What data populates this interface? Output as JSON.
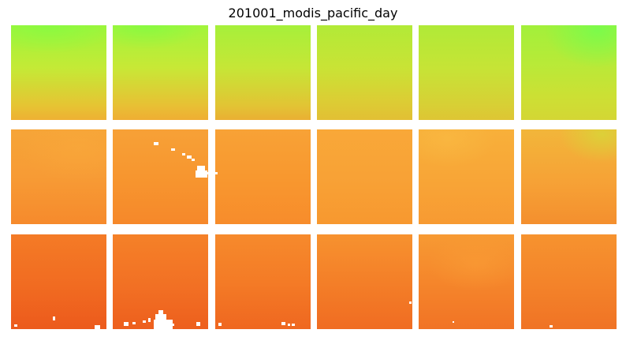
{
  "title": "201001_modis_pacific_day",
  "grid": {
    "rows": 3,
    "columns": 6,
    "tiles": [
      {
        "id": "r0c0",
        "palette": [
          "#9ef53a",
          "#eeb033"
        ]
      },
      {
        "id": "r0c1",
        "palette": [
          "#a2f53b",
          "#efae33"
        ]
      },
      {
        "id": "r0c2",
        "palette": [
          "#a6f03a",
          "#eaaf33"
        ]
      },
      {
        "id": "r0c3",
        "palette": [
          "#b2ea37",
          "#e2bf34"
        ]
      },
      {
        "id": "r0c4",
        "palette": [
          "#b0ea37",
          "#dec534"
        ]
      },
      {
        "id": "r0c5",
        "palette": [
          "#a2f03a",
          "#d4d634"
        ]
      },
      {
        "id": "r1c0",
        "palette": [
          "#f6a538",
          "#f68a2c"
        ]
      },
      {
        "id": "r1c1",
        "palette": [
          "#f7a137",
          "#f6882a"
        ]
      },
      {
        "id": "r1c2",
        "palette": [
          "#f8a236",
          "#f78c2b"
        ]
      },
      {
        "id": "r1c3",
        "palette": [
          "#f9a838",
          "#f7982f"
        ]
      },
      {
        "id": "r1c4",
        "palette": [
          "#f8b03a",
          "#f79a32"
        ]
      },
      {
        "id": "r1c5",
        "palette": [
          "#f2b63a",
          "#f48f2e"
        ]
      },
      {
        "id": "r2c0",
        "palette": [
          "#f47b26",
          "#ec5a1c"
        ]
      },
      {
        "id": "r2c1",
        "palette": [
          "#f58128",
          "#ed5f1d"
        ]
      },
      {
        "id": "r2c2",
        "palette": [
          "#f68a2c",
          "#ef6720"
        ]
      },
      {
        "id": "r2c3",
        "palette": [
          "#f7922f",
          "#f06c22"
        ]
      },
      {
        "id": "r2c4",
        "palette": [
          "#f79a33",
          "#f17325"
        ]
      },
      {
        "id": "r2c5",
        "palette": [
          "#f6932f",
          "#f07325"
        ]
      }
    ]
  },
  "colors": {
    "background": "#ffffff",
    "title_text": "#000000",
    "missing_data": "#ffffff"
  }
}
